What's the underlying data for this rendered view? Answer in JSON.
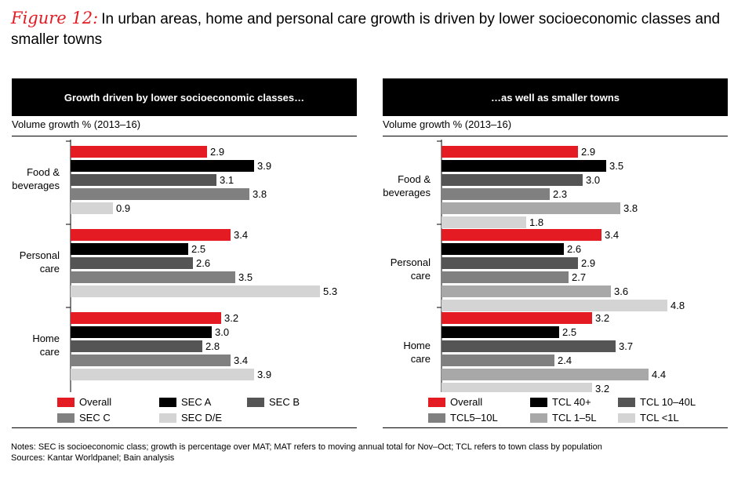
{
  "title": {
    "figure": "Figure 12:",
    "text": "In urban areas, home and personal care growth is driven by lower socioeconomic classes and smaller towns"
  },
  "colors": {
    "red": "#e51b24",
    "black": "#000000",
    "dark_gray": "#555555",
    "mid_gray": "#808080",
    "light_gray": "#a8a8a8",
    "lighter_gray": "#d4d4d4"
  },
  "chart_data": [
    {
      "type": "bar",
      "orientation": "horizontal",
      "banner": "Growth driven by lower socioeconomic classes…",
      "ylabel": "Volume growth % (2013–16)",
      "categories": [
        [
          "Food &",
          "beverages"
        ],
        [
          "Personal",
          "care"
        ],
        [
          "Home",
          "care"
        ]
      ],
      "series": [
        {
          "name": "Overall",
          "color": "#e51b24",
          "values": [
            2.9,
            3.4,
            3.2
          ]
        },
        {
          "name": "SEC A",
          "color": "#000000",
          "values": [
            3.9,
            2.5,
            3.0
          ]
        },
        {
          "name": "SEC B",
          "color": "#555555",
          "values": [
            3.1,
            2.6,
            2.8
          ]
        },
        {
          "name": "SEC C",
          "color": "#808080",
          "values": [
            3.8,
            3.5,
            3.4
          ]
        },
        {
          "name": "SEC D/E",
          "color": "#d4d4d4",
          "values": [
            0.9,
            5.3,
            3.9
          ]
        }
      ],
      "xlim": [
        0,
        6
      ],
      "legend_position": "bottom"
    },
    {
      "type": "bar",
      "orientation": "horizontal",
      "banner": "…as well as smaller towns",
      "ylabel": "Volume growth % (2013–16)",
      "categories": [
        [
          "Food &",
          "beverages"
        ],
        [
          "Personal",
          "care"
        ],
        [
          "Home",
          "care"
        ]
      ],
      "series": [
        {
          "name": "Overall",
          "color": "#e51b24",
          "values": [
            2.9,
            3.4,
            3.2
          ]
        },
        {
          "name": "TCL 40+",
          "color": "#000000",
          "values": [
            3.5,
            2.6,
            2.5
          ]
        },
        {
          "name": "TCL 10–40L",
          "color": "#555555",
          "values": [
            3.0,
            2.9,
            3.7
          ]
        },
        {
          "name": "TCL5–10L",
          "color": "#808080",
          "values": [
            2.3,
            2.7,
            2.4
          ]
        },
        {
          "name": "TCL 1–5L",
          "color": "#a8a8a8",
          "values": [
            3.8,
            3.6,
            4.4
          ]
        },
        {
          "name": "TCL <1L",
          "color": "#d4d4d4",
          "values": [
            1.8,
            4.8,
            3.2
          ]
        }
      ],
      "xlim": [
        0,
        6
      ],
      "legend_position": "bottom"
    }
  ],
  "notes": {
    "line1": "Notes: SEC is socioeconomic class; growth is percentage over MAT; MAT refers to moving annual total for Nov–Oct; TCL refers to town class by population",
    "line2": "Sources: Kantar Worldpanel; Bain analysis"
  }
}
